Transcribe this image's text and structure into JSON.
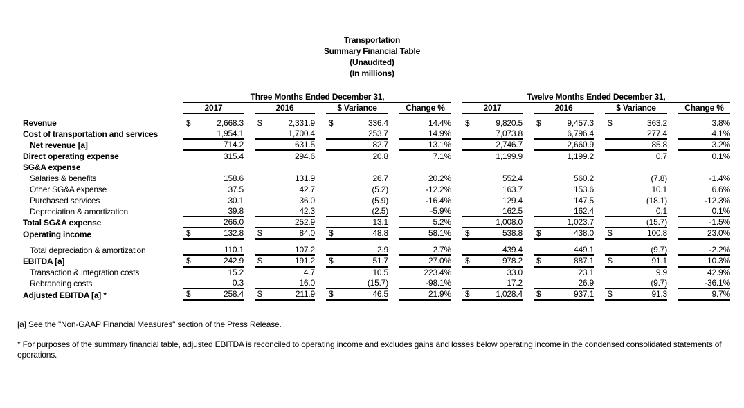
{
  "title": {
    "line1": "Transportation",
    "line2": "Summary Financial Table",
    "line3": "(Unaudited)",
    "line4": "(In millions)"
  },
  "table": {
    "currency_symbol": "$",
    "groups": [
      {
        "label": "Three Months Ended December 31,"
      },
      {
        "label": "Twelve Months Ended December 31,"
      }
    ],
    "columns": [
      "2017",
      "2016",
      "$ Variance",
      "Change %"
    ],
    "rows": [
      {
        "label": "Revenue",
        "bold": true,
        "indent": 0,
        "dollar": true,
        "rule": "none",
        "three": [
          "2,668.3",
          "2,331.9",
          "336.4",
          "14.4%"
        ],
        "twelve": [
          "9,820.5",
          "9,457.3",
          "363.2",
          "3.8%"
        ]
      },
      {
        "label": "Cost of transportation and services",
        "bold": true,
        "indent": 0,
        "dollar": false,
        "rule": "single",
        "three": [
          "1,954.1",
          "1,700.4",
          "253.7",
          "14.9%"
        ],
        "twelve": [
          "7,073.8",
          "6,796.4",
          "277.4",
          "4.1%"
        ]
      },
      {
        "label": "Net revenue [a]",
        "bold": true,
        "indent": 1,
        "dollar": false,
        "rule": "single",
        "three": [
          "714.2",
          "631.5",
          "82.7",
          "13.1%"
        ],
        "twelve": [
          "2,746.7",
          "2,660.9",
          "85.8",
          "3.2%"
        ]
      },
      {
        "label": "Direct operating expense",
        "bold": true,
        "indent": 0,
        "dollar": false,
        "rule": "none",
        "three": [
          "315.4",
          "294.6",
          "20.8",
          "7.1%"
        ],
        "twelve": [
          "1,199.9",
          "1,199.2",
          "0.7",
          "0.1%"
        ]
      },
      {
        "label": "SG&A expense",
        "bold": true,
        "indent": 0,
        "dollar": false,
        "rule": "none",
        "three": null,
        "twelve": null
      },
      {
        "label": "Salaries & benefits",
        "bold": false,
        "indent": 1,
        "dollar": false,
        "rule": "none",
        "three": [
          "158.6",
          "131.9",
          "26.7",
          "20.2%"
        ],
        "twelve": [
          "552.4",
          "560.2",
          "(7.8)",
          "-1.4%"
        ]
      },
      {
        "label": "Other SG&A expense",
        "bold": false,
        "indent": 1,
        "dollar": false,
        "rule": "none",
        "three": [
          "37.5",
          "42.7",
          "(5.2)",
          "-12.2%"
        ],
        "twelve": [
          "163.7",
          "153.6",
          "10.1",
          "6.6%"
        ]
      },
      {
        "label": "Purchased services",
        "bold": false,
        "indent": 1,
        "dollar": false,
        "rule": "none",
        "three": [
          "30.1",
          "36.0",
          "(5.9)",
          "-16.4%"
        ],
        "twelve": [
          "129.4",
          "147.5",
          "(18.1)",
          "-12.3%"
        ]
      },
      {
        "label": "Depreciation & amortization",
        "bold": false,
        "indent": 1,
        "dollar": false,
        "rule": "single",
        "three": [
          "39.8",
          "42.3",
          "(2.5)",
          "-5.9%"
        ],
        "twelve": [
          "162.5",
          "162.4",
          "0.1",
          "0.1%"
        ]
      },
      {
        "label": "Total SG&A expense",
        "bold": true,
        "indent": 0,
        "dollar": false,
        "rule": "single",
        "three": [
          "266.0",
          "252.9",
          "13.1",
          "5.2%"
        ],
        "twelve": [
          "1,008.0",
          "1,023.7",
          "(15.7)",
          "-1.5%"
        ]
      },
      {
        "label": "Operating income",
        "bold": true,
        "indent": 0,
        "dollar": true,
        "rule": "heavy",
        "gap_after": true,
        "three": [
          "132.8",
          "84.0",
          "48.8",
          "58.1%"
        ],
        "twelve": [
          "538.8",
          "438.0",
          "100.8",
          "23.0%"
        ]
      },
      {
        "label": "Total depreciation & amortization",
        "bold": false,
        "indent": 1,
        "dollar": false,
        "rule": "single",
        "three": [
          "110.1",
          "107.2",
          "2.9",
          "2.7%"
        ],
        "twelve": [
          "439.4",
          "449.1",
          "(9.7)",
          "-2.2%"
        ]
      },
      {
        "label": "EBITDA [a]",
        "bold": true,
        "indent": 0,
        "dollar": true,
        "rule": "heavy",
        "three": [
          "242.9",
          "191.2",
          "51.7",
          "27.0%"
        ],
        "twelve": [
          "978.2",
          "887.1",
          "91.1",
          "10.3%"
        ]
      },
      {
        "label": "Transaction & integration costs",
        "bold": false,
        "indent": 1,
        "dollar": false,
        "rule": "none",
        "three": [
          "15.2",
          "4.7",
          "10.5",
          "223.4%"
        ],
        "twelve": [
          "33.0",
          "23.1",
          "9.9",
          "42.9%"
        ]
      },
      {
        "label": "Rebranding costs",
        "bold": false,
        "indent": 1,
        "dollar": false,
        "rule": "single",
        "three": [
          "0.3",
          "16.0",
          "(15.7)",
          "-98.1%"
        ],
        "twelve": [
          "17.2",
          "26.9",
          "(9.7)",
          "-36.1%"
        ]
      },
      {
        "label": "Adjusted EBITDA [a] *",
        "bold": true,
        "indent": 0,
        "dollar": true,
        "rule": "heavy",
        "three": [
          "258.4",
          "211.9",
          "46.5",
          "21.9%"
        ],
        "twelve": [
          "1,028.4",
          "937.1",
          "91.3",
          "9.7%"
        ]
      }
    ]
  },
  "footnotes": {
    "a": "[a] See the \"Non-GAAP Financial Measures\" section of the Press Release.",
    "star": "* For purposes of the summary financial table, adjusted EBITDA is reconciled to operating income and excludes gains and losses below operating income in the condensed consolidated statements of operations."
  }
}
